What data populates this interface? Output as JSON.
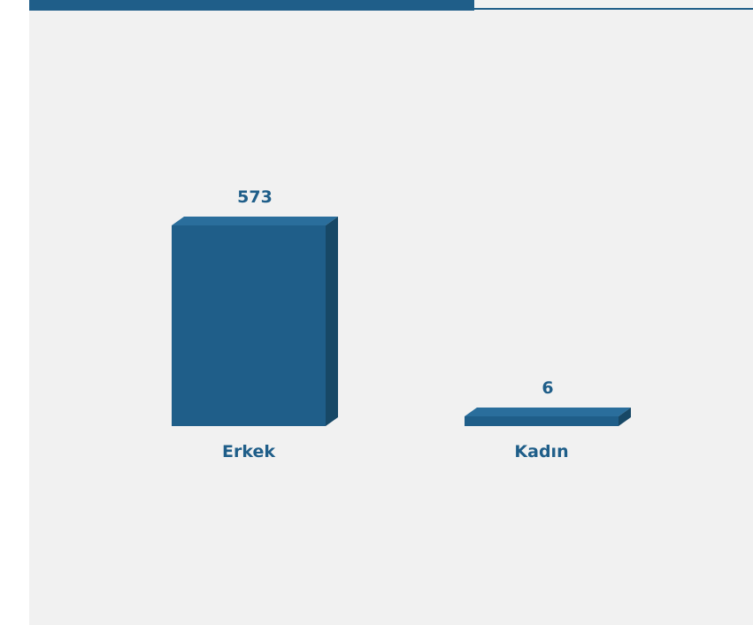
{
  "colors": {
    "accent": "#1f5e89",
    "bar_front": "#1f5e89",
    "bar_side": "#174866",
    "bar_top": "#2a6e9c",
    "label": "#1f5e89",
    "background": "#f1f1f1"
  },
  "chart_data": {
    "type": "bar",
    "categories": [
      "Erkek",
      "Kadın"
    ],
    "values": [
      573,
      6
    ],
    "title": "",
    "xlabel": "",
    "ylabel": "",
    "ylim": [
      0,
      573
    ],
    "grid": false,
    "legend": "none",
    "style": "3d-column",
    "data_labels": true
  }
}
